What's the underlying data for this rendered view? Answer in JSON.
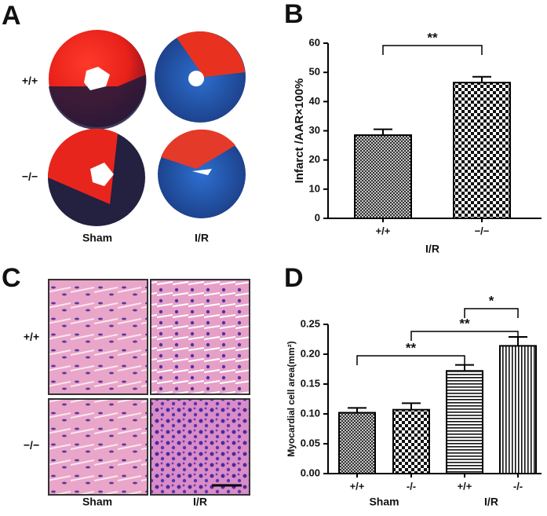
{
  "image_panels": [
    {
      "letter": "A",
      "rows": [
        "+/+",
        "−/−"
      ],
      "columns": [
        "Sham",
        "I/R"
      ]
    },
    {
      "letter": "C",
      "rows": [
        "+/+",
        "−/−"
      ],
      "columns": [
        "Sham",
        "I/R"
      ]
    }
  ],
  "chart_data": [
    {
      "type": "bar",
      "panel": "B",
      "ylabel": "Infarct /AAR×100%",
      "xlabel": "I/R",
      "categories": [
        "+/+",
        "−/−"
      ],
      "values": [
        28.5,
        46.5
      ],
      "errors": [
        2,
        2
      ],
      "patterns": [
        "crosshatch",
        "checker"
      ],
      "ylim": [
        0,
        60
      ],
      "yticks": [
        0,
        10,
        20,
        30,
        40,
        50,
        60
      ],
      "comparisons": [
        {
          "from": 0,
          "to": 1,
          "label": "**"
        }
      ]
    },
    {
      "type": "bar",
      "panel": "D",
      "ylabel": "Myocardial cell area(mm²)",
      "categories": [
        "+/+",
        "-/-",
        "+/+",
        "-/-"
      ],
      "groups": [
        {
          "label": "Sham",
          "from": 0,
          "to": 1
        },
        {
          "label": "I/R",
          "from": 2,
          "to": 3
        }
      ],
      "values": [
        0.102,
        0.107,
        0.172,
        0.214
      ],
      "errors": [
        0.008,
        0.011,
        0.01,
        0.015
      ],
      "patterns": [
        "crosshatch",
        "checker",
        "hlines",
        "vlines"
      ],
      "ylim": [
        0,
        0.25
      ],
      "yticks": [
        {
          "value": 0,
          "label": "0.00"
        },
        {
          "value": 0.05,
          "label": "0.05"
        },
        {
          "value": 0.1,
          "label": "0.10"
        },
        {
          "value": 0.15,
          "label": "0.15"
        },
        {
          "value": 0.2,
          "label": "0.20"
        },
        {
          "value": 0.25,
          "label": "0.25"
        }
      ],
      "comparisons": [
        {
          "from": 0,
          "to": 2,
          "label": "**"
        },
        {
          "from": 1,
          "to": 3,
          "label": "**"
        },
        {
          "from": 2,
          "to": 3,
          "label": "*"
        }
      ]
    }
  ]
}
